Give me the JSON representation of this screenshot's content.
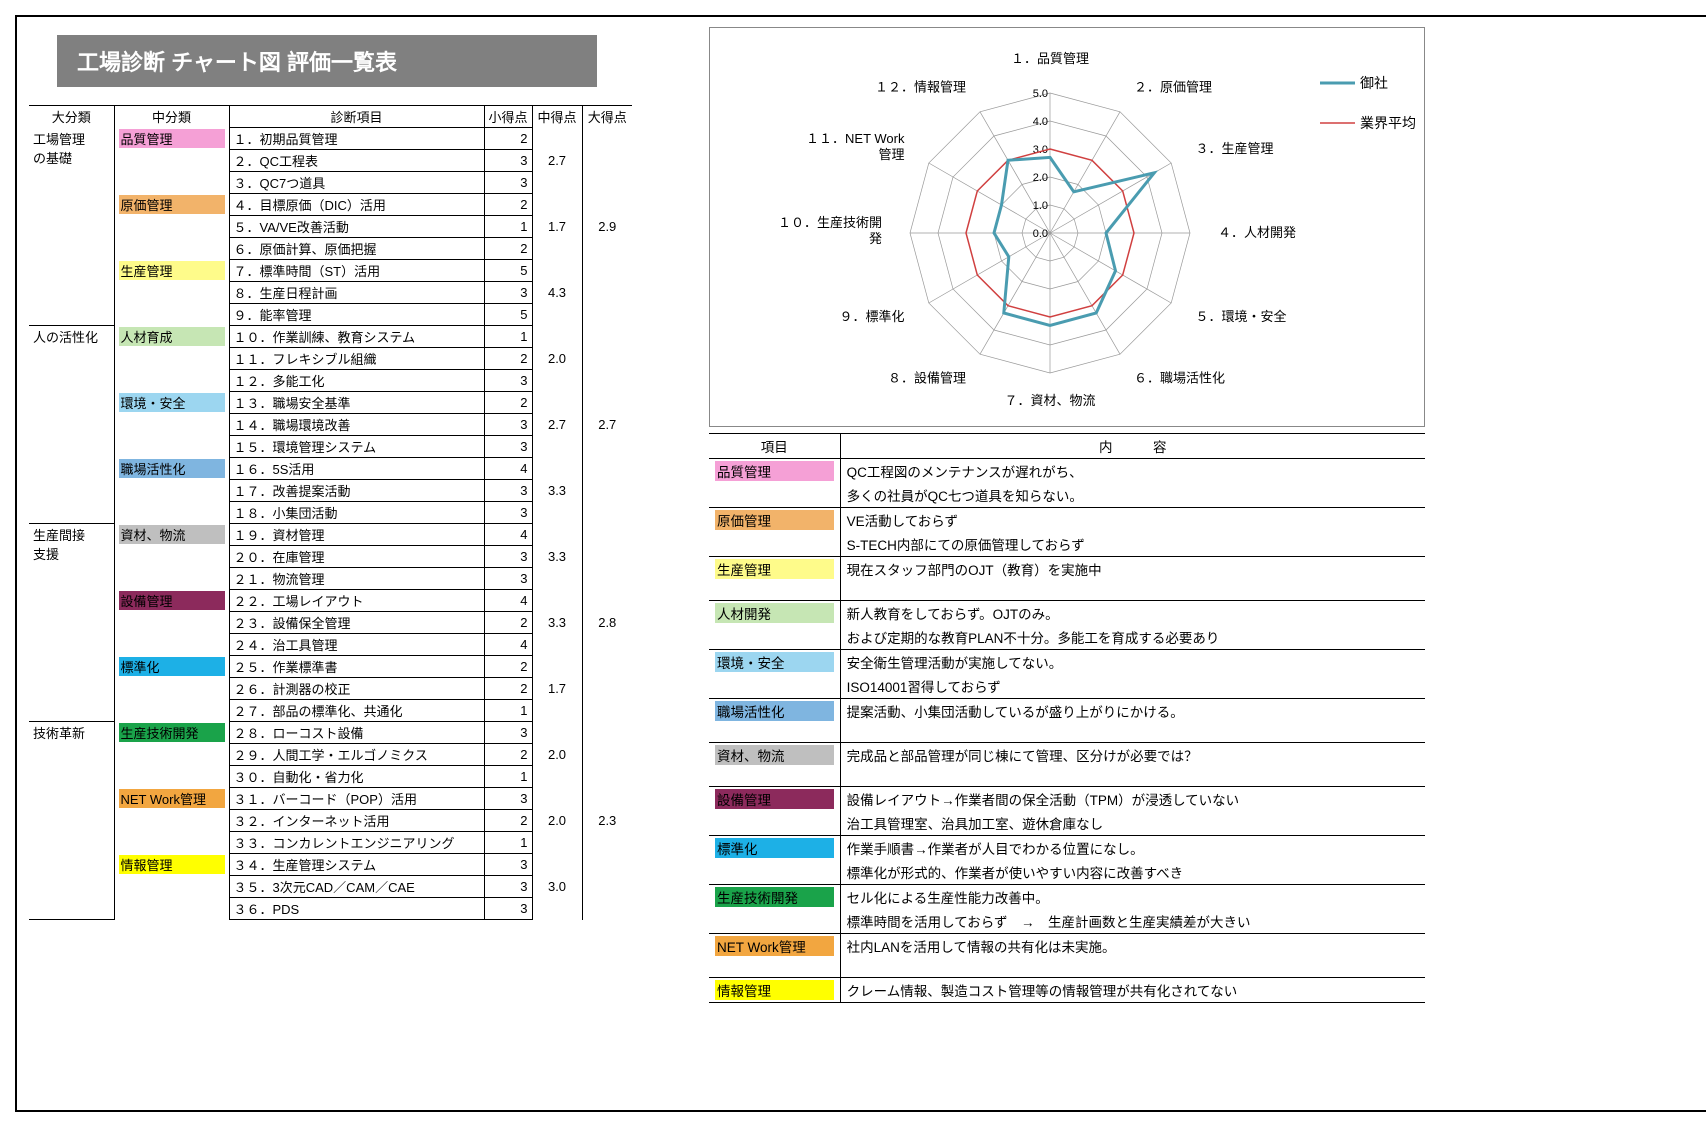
{
  "title": "工場診断 チャート図 評価一覧表",
  "headers": {
    "daicat": "大分類",
    "chucat": "中分類",
    "item": "診断項目",
    "sho": "小得点",
    "chu": "中得点",
    "dai": "大得点",
    "koumoku": "項目",
    "naiyou": "内　　　容"
  },
  "colors": {
    "品質管理": "#f5a0d6",
    "原価管理": "#f2b36a",
    "生産管理": "#fefb8a",
    "人材育成": "#c6e6b4",
    "環境・安全": "#9cd6f0",
    "職場活性化": "#7fb5e0",
    "資材、物流": "#bfbfbf",
    "設備管理": "#8c2a5c",
    "標準化": "#1db0e6",
    "生産技術開発": "#1aa34a",
    "NET Work管理": "#f2a640",
    "情報管理": "#ffff00"
  },
  "items": [
    {
      "dai": "工場管理の基礎",
      "chu": "品質管理",
      "n": "１．初期品質管理",
      "s": 2
    },
    {
      "dai": "",
      "chu": "",
      "n": "２．QC工程表",
      "s": 3
    },
    {
      "dai": "",
      "chu": "",
      "n": "３．QC7つ道具",
      "s": 3,
      "chuEnd": true,
      "chuScore": "2.7"
    },
    {
      "dai": "",
      "chu": "原価管理",
      "n": "４．目標原価（DIC）活用",
      "s": 2
    },
    {
      "dai": "",
      "chu": "",
      "n": "５．VA/VE改善活動",
      "s": 1
    },
    {
      "dai": "",
      "chu": "",
      "n": "６．原価計算、原価把握",
      "s": 2,
      "chuEnd": true,
      "chuScore": "1.7"
    },
    {
      "dai": "",
      "chu": "生産管理",
      "n": "７．標準時間（ST）活用",
      "s": 5
    },
    {
      "dai": "",
      "chu": "",
      "n": "８．生産日程計画",
      "s": 3
    },
    {
      "dai": "",
      "chu": "",
      "n": "９．能率管理",
      "s": 5,
      "chuEnd": true,
      "daiEnd": true,
      "chuScore": "4.3",
      "daiScore": "2.9"
    },
    {
      "dai": "人の活性化",
      "chu": "人材育成",
      "n": "１０．作業訓練、教育システム",
      "s": 1
    },
    {
      "dai": "",
      "chu": "",
      "n": "１１．フレキシブル組織",
      "s": 2
    },
    {
      "dai": "",
      "chu": "",
      "n": "１２．多能工化",
      "s": 3,
      "chuEnd": true,
      "chuScore": "2.0"
    },
    {
      "dai": "",
      "chu": "環境・安全",
      "n": "１３．職場安全基準",
      "s": 2
    },
    {
      "dai": "",
      "chu": "",
      "n": "１４．職場環境改善",
      "s": 3
    },
    {
      "dai": "",
      "chu": "",
      "n": "１５．環境管理システム",
      "s": 3,
      "chuEnd": true,
      "chuScore": "2.7"
    },
    {
      "dai": "",
      "chu": "職場活性化",
      "n": "１６．5S活用",
      "s": 4
    },
    {
      "dai": "",
      "chu": "",
      "n": "１７．改善提案活動",
      "s": 3
    },
    {
      "dai": "",
      "chu": "",
      "n": "１８．小集団活動",
      "s": 3,
      "chuEnd": true,
      "daiEnd": true,
      "chuScore": "3.3",
      "daiScore": "2.7"
    },
    {
      "dai": "生産間接支援",
      "chu": "資材、物流",
      "n": "１９．資材管理",
      "s": 4
    },
    {
      "dai": "",
      "chu": "",
      "n": "２０．在庫管理",
      "s": 3
    },
    {
      "dai": "",
      "chu": "",
      "n": "２１．物流管理",
      "s": 3,
      "chuEnd": true,
      "chuScore": "3.3"
    },
    {
      "dai": "",
      "chu": "設備管理",
      "n": "２２．工場レイアウト",
      "s": 4
    },
    {
      "dai": "",
      "chu": "",
      "n": "２３．設備保全管理",
      "s": 2
    },
    {
      "dai": "",
      "chu": "",
      "n": "２４．治工具管理",
      "s": 4,
      "chuEnd": true,
      "chuScore": "3.3"
    },
    {
      "dai": "",
      "chu": "標準化",
      "n": "２５．作業標準書",
      "s": 2
    },
    {
      "dai": "",
      "chu": "",
      "n": "２６．計測器の校正",
      "s": 2
    },
    {
      "dai": "",
      "chu": "",
      "n": "２７．部品の標準化、共通化",
      "s": 1,
      "chuEnd": true,
      "daiEnd": true,
      "chuScore": "1.7",
      "daiScore": "2.8"
    },
    {
      "dai": "技術革新",
      "chu": "生産技術開発",
      "n": "２８．ローコスト設備",
      "s": 3
    },
    {
      "dai": "",
      "chu": "",
      "n": "２９．人間工学・エルゴノミクス",
      "s": 2
    },
    {
      "dai": "",
      "chu": "",
      "n": "３０．自動化・省力化",
      "s": 1,
      "chuEnd": true,
      "chuScore": "2.0"
    },
    {
      "dai": "",
      "chu": "NET Work管理",
      "n": "３１．バーコード（POP）活用",
      "s": 3
    },
    {
      "dai": "",
      "chu": "",
      "n": "３２．インターネット活用",
      "s": 2
    },
    {
      "dai": "",
      "chu": "",
      "n": "３３．コンカレントエンジニアリング",
      "s": 1,
      "chuEnd": true,
      "chuScore": "2.0"
    },
    {
      "dai": "",
      "chu": "情報管理",
      "n": "３４．生産管理システム",
      "s": 3
    },
    {
      "dai": "",
      "chu": "",
      "n": "３５．3次元CAD／CAM／CAE",
      "s": 3
    },
    {
      "dai": "",
      "chu": "",
      "n": "３６．PDS",
      "s": 3,
      "chuEnd": true,
      "daiEnd": true,
      "chuScore": "3.0",
      "daiScore": "2.3"
    }
  ],
  "radar": {
    "labels": [
      "１．品質管理",
      "２．原価管理",
      "３．生産管理",
      "４．人材開発",
      "５．環境・安全",
      "６．職場活性化",
      "７．資材、物流",
      "８．設備管理",
      "９．標準化",
      "１０．生産技術開発",
      "１１．NET Work管理",
      "１２．情報管理"
    ],
    "max": 5.0,
    "ticks": [
      0.0,
      1.0,
      2.0,
      3.0,
      4.0,
      5.0
    ],
    "series": [
      {
        "name": "御社",
        "color": "#4a9cb0",
        "width": 3,
        "values": [
          2.7,
          1.7,
          4.3,
          2.0,
          2.7,
          3.3,
          3.3,
          3.3,
          1.7,
          2.0,
          2.0,
          3.0
        ]
      },
      {
        "name": "業界平均",
        "color": "#d04040",
        "width": 1.5,
        "values": [
          3.0,
          3.0,
          3.0,
          3.0,
          3.0,
          3.0,
          3.0,
          3.0,
          3.0,
          3.0,
          3.0,
          3.0
        ]
      }
    ]
  },
  "comments": [
    {
      "cat": "品質管理",
      "text": "QC工程図のメンテナンスが遅れがち、\n多くの社員がQC七つ道具を知らない。"
    },
    {
      "cat": "原価管理",
      "text": "VE活動しておらず\nS-TECH内部にての原価管理しておらず"
    },
    {
      "cat": "生産管理",
      "text": "現在スタッフ部門のOJT（教育）を実施中",
      "spacer": true
    },
    {
      "cat": "人材開発",
      "colorKey": "人材育成",
      "text": "新人教育をしておらず。OJTのみ。\nおよび定期的な教育PLAN不十分。多能工を育成する必要あり"
    },
    {
      "cat": "環境・安全",
      "text": "安全衛生管理活動が実施してない。\nISO14001習得しておらず"
    },
    {
      "cat": "職場活性化",
      "text": "提案活動、小集団活動しているが盛り上がりにかける。",
      "spacer": true
    },
    {
      "cat": "資材、物流",
      "text": "完成品と部品管理が同じ棟にて管理、区分けが必要では？",
      "spacer": true
    },
    {
      "cat": "設備管理",
      "text": "設備レイアウト→作業者間の保全活動（TPM）が浸透していない\n治工具管理室、治具加工室、遊休倉庫なし"
    },
    {
      "cat": "標準化",
      "text": "作業手順書→作業者が人目でわかる位置になし。\n標準化が形式的、作業者が使いやすい内容に改善すべき"
    },
    {
      "cat": "生産技術開発",
      "text": "セル化による生産性能力改善中。\n標準時間を活用しておらず　→　生産計画数と生産実績差が大きい"
    },
    {
      "cat": "NET Work管理",
      "text": "社内LANを活用して情報の共有化は未実施。",
      "spacer": true
    },
    {
      "cat": "情報管理",
      "text": "クレーム情報、製造コスト管理等の情報管理が共有化されてない"
    }
  ]
}
